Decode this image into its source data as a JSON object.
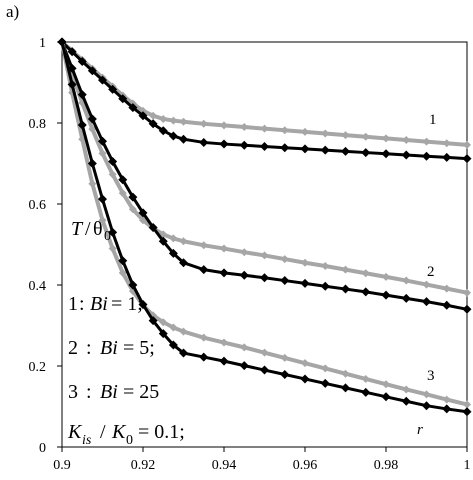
{
  "chart_data": {
    "type": "line",
    "panel_label": "a)",
    "xlim": [
      0.9,
      1.0
    ],
    "ylim": [
      0,
      1.0
    ],
    "x_ticks": [
      "0.9",
      "0.92",
      "0.94",
      "0.96",
      "0.98",
      "1"
    ],
    "y_ticks": [
      "0",
      "0.2",
      "0.4",
      "0.6",
      "0.8",
      "1"
    ],
    "grid": false,
    "colors": {
      "gray": "#a6a6a6",
      "black": "#000000"
    },
    "curve_labels": [
      "1",
      "2",
      "3"
    ],
    "annotations": {
      "ylabel_T": "T",
      "ylabel_slash": "/",
      "ylabel_theta": "θ",
      "ylabel_sub": "0",
      "legend": [
        {
          "num": "1",
          "sep": ":",
          "sym": "Bi",
          "eq": "= 1;"
        },
        {
          "num": "2",
          "sep": ":",
          "sym": "Bi",
          "eq": "= 5;"
        },
        {
          "num": "3",
          "sep": ":",
          "sym": "Bi",
          "eq": "= 25"
        }
      ],
      "kis_K": "K",
      "kis_sub": "is",
      "kis_slash": "/",
      "k0_K": "K",
      "k0_sub": "0",
      "kis_eq": "= 0.1;",
      "r_label": "r"
    },
    "series": [
      {
        "curve": "1",
        "color": "gray",
        "x": [
          0.9,
          0.9025,
          0.905,
          0.9075,
          0.91,
          0.9125,
          0.915,
          0.9175,
          0.92,
          0.9225,
          0.925,
          0.9275,
          0.93,
          0.935,
          0.94,
          0.945,
          0.95,
          0.955,
          0.96,
          0.965,
          0.97,
          0.975,
          0.98,
          0.985,
          0.99,
          0.995,
          1.0
        ],
        "y": [
          1.0,
          0.978,
          0.956,
          0.934,
          0.912,
          0.89,
          0.868,
          0.848,
          0.83,
          0.818,
          0.81,
          0.806,
          0.803,
          0.798,
          0.794,
          0.79,
          0.786,
          0.782,
          0.778,
          0.774,
          0.77,
          0.766,
          0.762,
          0.758,
          0.754,
          0.75,
          0.746
        ]
      },
      {
        "curve": "1",
        "color": "black",
        "x": [
          0.9,
          0.9025,
          0.905,
          0.9075,
          0.91,
          0.9125,
          0.915,
          0.9175,
          0.92,
          0.9225,
          0.925,
          0.9275,
          0.93,
          0.935,
          0.94,
          0.945,
          0.95,
          0.955,
          0.96,
          0.965,
          0.97,
          0.975,
          0.98,
          0.985,
          0.99,
          0.995,
          1.0
        ],
        "y": [
          1.0,
          0.976,
          0.952,
          0.929,
          0.906,
          0.883,
          0.86,
          0.838,
          0.818,
          0.798,
          0.781,
          0.768,
          0.76,
          0.752,
          0.748,
          0.745,
          0.742,
          0.739,
          0.736,
          0.733,
          0.73,
          0.727,
          0.724,
          0.721,
          0.718,
          0.715,
          0.712
        ]
      },
      {
        "curve": "2",
        "color": "gray",
        "x": [
          0.9,
          0.9025,
          0.905,
          0.9075,
          0.91,
          0.9125,
          0.915,
          0.9175,
          0.92,
          0.9225,
          0.925,
          0.9275,
          0.93,
          0.935,
          0.94,
          0.945,
          0.95,
          0.955,
          0.96,
          0.965,
          0.97,
          0.975,
          0.98,
          0.985,
          0.99,
          0.995,
          1.0
        ],
        "y": [
          1.0,
          0.92,
          0.85,
          0.785,
          0.725,
          0.673,
          0.627,
          0.587,
          0.56,
          0.54,
          0.525,
          0.515,
          0.508,
          0.498,
          0.49,
          0.481,
          0.473,
          0.464,
          0.455,
          0.447,
          0.438,
          0.429,
          0.42,
          0.411,
          0.401,
          0.391,
          0.381
        ]
      },
      {
        "curve": "2",
        "color": "black",
        "x": [
          0.9,
          0.9025,
          0.905,
          0.9075,
          0.91,
          0.9125,
          0.915,
          0.9175,
          0.92,
          0.9225,
          0.925,
          0.9275,
          0.93,
          0.935,
          0.94,
          0.945,
          0.95,
          0.955,
          0.96,
          0.965,
          0.97,
          0.975,
          0.98,
          0.985,
          0.99,
          0.995,
          1.0
        ],
        "y": [
          1.0,
          0.935,
          0.87,
          0.81,
          0.755,
          0.705,
          0.66,
          0.617,
          0.578,
          0.542,
          0.508,
          0.478,
          0.455,
          0.438,
          0.43,
          0.424,
          0.418,
          0.411,
          0.404,
          0.397,
          0.39,
          0.383,
          0.375,
          0.367,
          0.359,
          0.35,
          0.34
        ]
      },
      {
        "curve": "3",
        "color": "gray",
        "x": [
          0.9,
          0.9025,
          0.905,
          0.9075,
          0.91,
          0.9125,
          0.915,
          0.9175,
          0.92,
          0.9225,
          0.925,
          0.9275,
          0.93,
          0.935,
          0.94,
          0.945,
          0.95,
          0.955,
          0.96,
          0.965,
          0.97,
          0.975,
          0.98,
          0.985,
          0.99,
          0.995,
          1.0
        ],
        "y": [
          1.0,
          0.875,
          0.76,
          0.65,
          0.56,
          0.49,
          0.43,
          0.385,
          0.35,
          0.325,
          0.308,
          0.295,
          0.285,
          0.27,
          0.258,
          0.246,
          0.233,
          0.22,
          0.207,
          0.194,
          0.181,
          0.168,
          0.155,
          0.142,
          0.13,
          0.117,
          0.105
        ]
      },
      {
        "curve": "3",
        "color": "black",
        "x": [
          0.9,
          0.9025,
          0.905,
          0.9075,
          0.91,
          0.9125,
          0.915,
          0.9175,
          0.92,
          0.9225,
          0.925,
          0.9275,
          0.93,
          0.935,
          0.94,
          0.945,
          0.95,
          0.955,
          0.96,
          0.965,
          0.97,
          0.975,
          0.98,
          0.985,
          0.99,
          0.995,
          1.0
        ],
        "y": [
          1.0,
          0.895,
          0.795,
          0.7,
          0.612,
          0.53,
          0.46,
          0.4,
          0.352,
          0.312,
          0.28,
          0.252,
          0.232,
          0.222,
          0.212,
          0.201,
          0.19,
          0.179,
          0.168,
          0.157,
          0.146,
          0.135,
          0.124,
          0.113,
          0.102,
          0.094,
          0.087
        ]
      }
    ]
  }
}
